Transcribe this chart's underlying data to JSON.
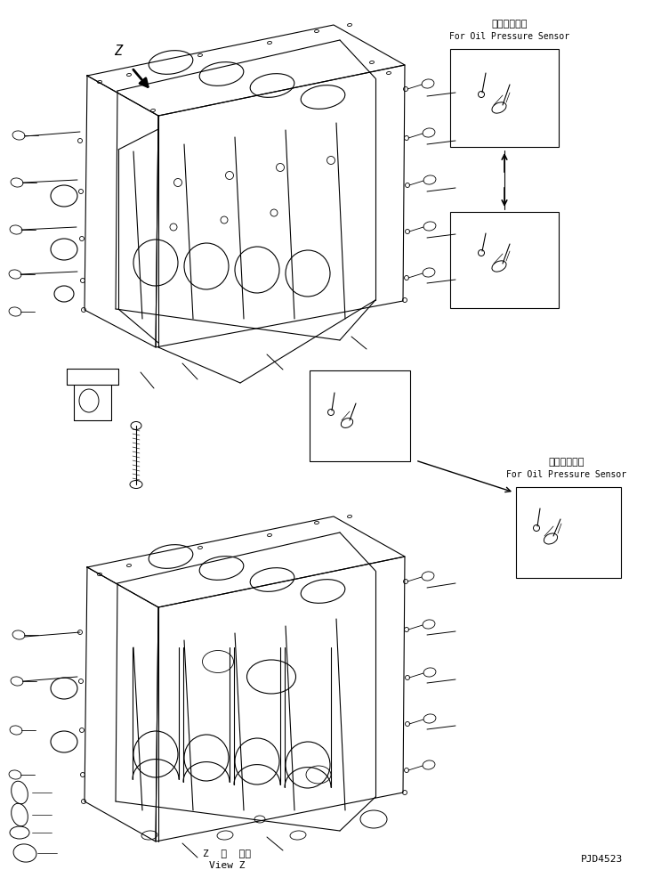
{
  "bg_color": "#ffffff",
  "lc": "#000000",
  "fig_w": 7.34,
  "fig_h": 9.86,
  "dpi": 100,
  "jp_label1": "油圧センサ用",
  "en_label1": "For Oil Pressure Sensor",
  "jp_label2": "油圧センサ用",
  "en_label2": "For Oil Pressure Sensor",
  "view_jp": "Z  視  ・・",
  "view_en": "View Z",
  "part_no": "PJD4523",
  "z_text": "Z"
}
